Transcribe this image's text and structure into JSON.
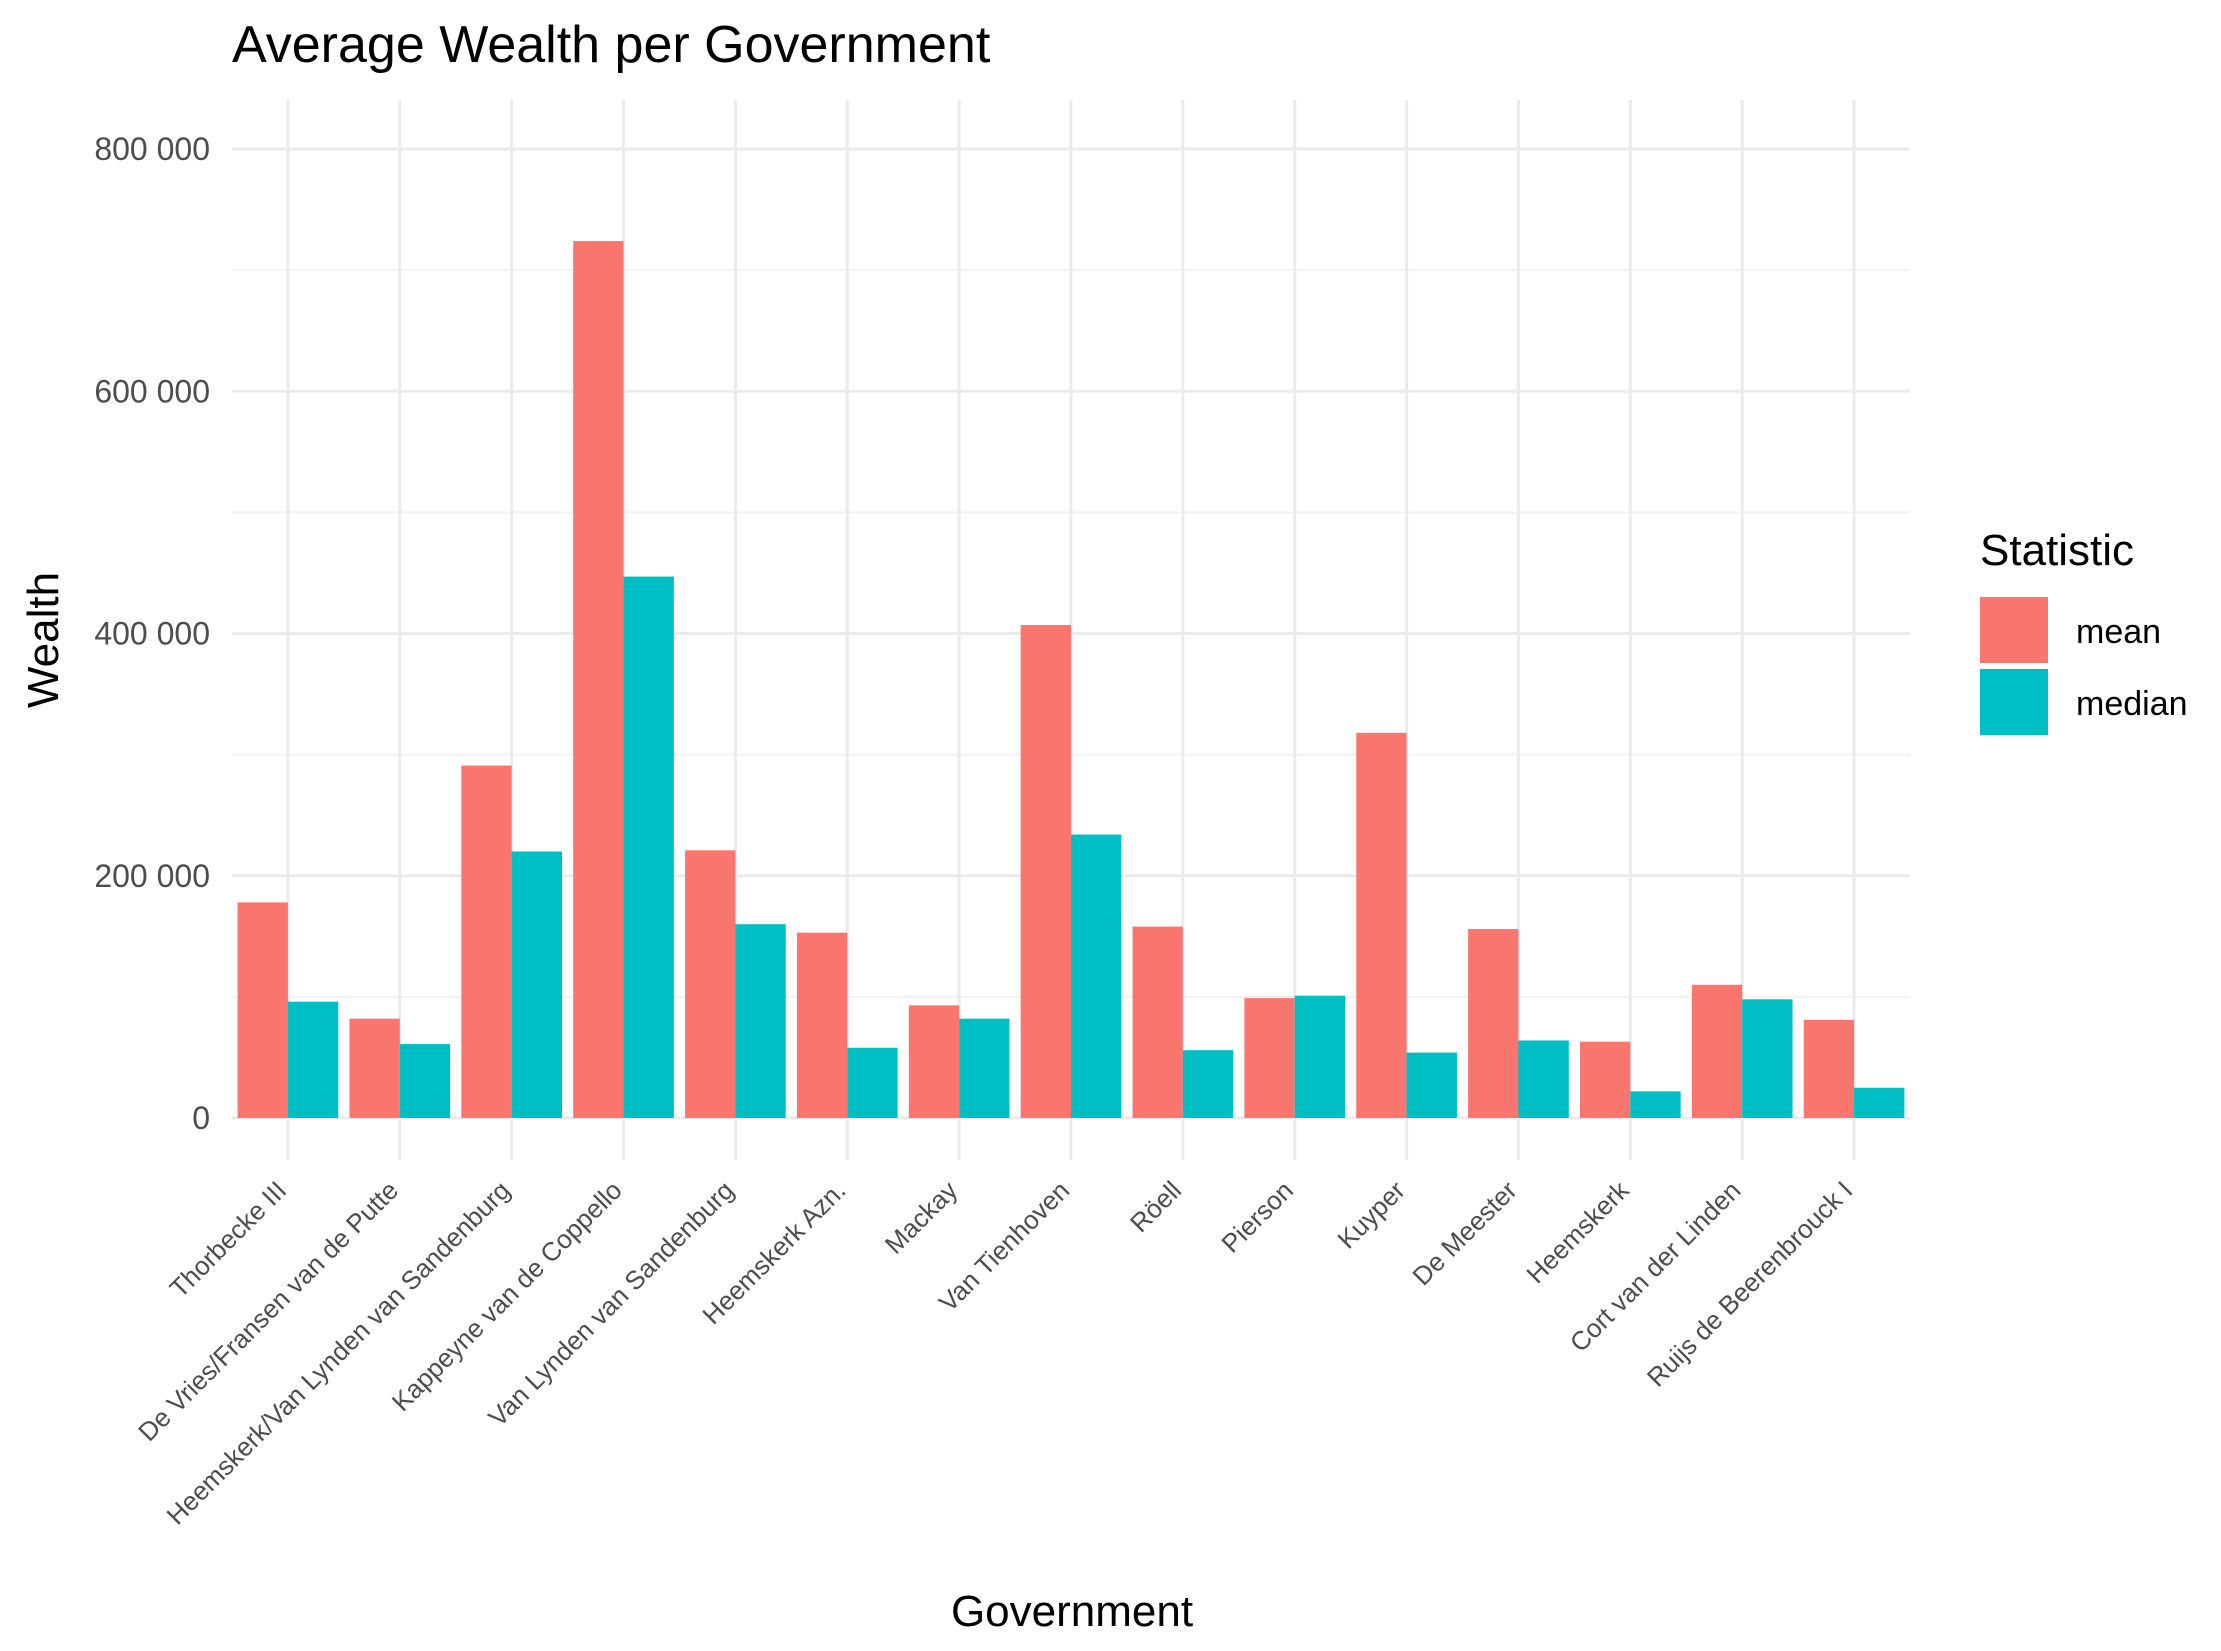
{
  "chart_data": {
    "type": "bar",
    "title": "Average Wealth per Government",
    "xlabel": "Government",
    "ylabel": "Wealth",
    "ylim": [
      0,
      850000
    ],
    "yticks": [
      0,
      200000,
      400000,
      600000,
      800000
    ],
    "ytick_labels": [
      "0",
      "200 000",
      "400 000",
      "600 000",
      "800 000"
    ],
    "categories": [
      "Thorbecke III",
      "De Vries/Fransen van de Putte",
      "Heemskerk/Van Lynden van Sandenburg",
      "Kappeyne van de Coppello",
      "Van Lynden van Sandenburg",
      "Heemskerk Azn.",
      "Mackay",
      "Van Tienhoven",
      "Röell",
      "Pierson",
      "Kuyper",
      "De Meester",
      "Heemskerk",
      "Cort van der Linden",
      "Ruijs de Beerenbrouck I"
    ],
    "series": [
      {
        "name": "mean",
        "color": "#F8766D",
        "values": [
          178000,
          82000,
          291000,
          724000,
          221000,
          153000,
          93000,
          407000,
          158000,
          99000,
          318000,
          156000,
          63000,
          110000,
          81000
        ]
      },
      {
        "name": "median",
        "color": "#00BFC4",
        "values": [
          96000,
          61000,
          220000,
          447000,
          160000,
          58000,
          82000,
          234000,
          56000,
          101000,
          54000,
          64000,
          22000,
          98000,
          25000
        ]
      }
    ],
    "legend": {
      "title": "Statistic",
      "position": "right"
    },
    "grid": true
  }
}
